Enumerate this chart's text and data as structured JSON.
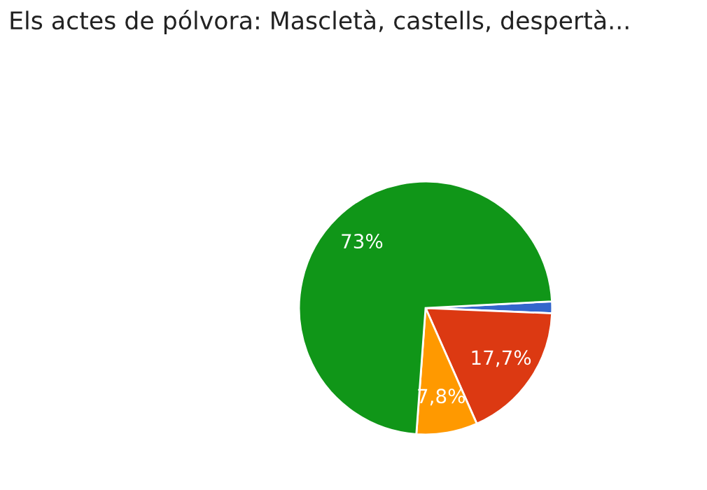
{
  "chart_data": {
    "type": "pie",
    "title": "Els actes de pólvora: Mascletà, castells, despertà...",
    "categories": [
      null,
      null,
      null,
      null
    ],
    "values": [
      1.5,
      17.7,
      7.8,
      73
    ],
    "value_labels": [
      null,
      "17,7%",
      "7,8%",
      "73%"
    ],
    "colors": [
      "#3366cc",
      "#dc3912",
      "#ff9900",
      "#109618"
    ],
    "legend": false
  }
}
